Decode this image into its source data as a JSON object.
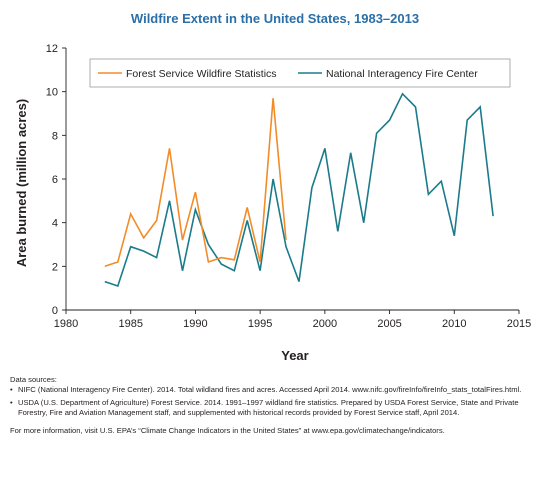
{
  "chart_data": {
    "type": "line",
    "title": "Wildfire Extent in the United States, 1983–2013",
    "xlabel": "Year",
    "ylabel": "Area burned (million acres)",
    "xlim": [
      1980,
      2015
    ],
    "ylim": [
      0,
      12
    ],
    "xticks": [
      1980,
      1985,
      1990,
      1995,
      2000,
      2005,
      2010,
      2015
    ],
    "yticks": [
      0,
      2,
      4,
      6,
      8,
      10,
      12
    ],
    "grid": false,
    "legend_position": "top",
    "series": [
      {
        "name": "Forest Service Wildfire Statistics",
        "color": "#f28c28",
        "x": [
          1983,
          1984,
          1985,
          1986,
          1987,
          1988,
          1989,
          1990,
          1991,
          1992,
          1993,
          1994,
          1995,
          1996,
          1997
        ],
        "y": [
          2.0,
          2.2,
          4.4,
          3.3,
          4.1,
          7.4,
          3.2,
          5.4,
          2.2,
          2.4,
          2.3,
          4.7,
          2.2,
          9.7,
          3.2
        ]
      },
      {
        "name": "National Interagency Fire Center",
        "color": "#1b7b8a",
        "x": [
          1983,
          1984,
          1985,
          1986,
          1987,
          1988,
          1989,
          1990,
          1991,
          1992,
          1993,
          1994,
          1995,
          1996,
          1997,
          1998,
          1999,
          2000,
          2001,
          2002,
          2003,
          2004,
          2005,
          2006,
          2007,
          2008,
          2009,
          2010,
          2011,
          2012,
          2013
        ],
        "y": [
          1.3,
          1.1,
          2.9,
          2.7,
          2.4,
          5.0,
          1.8,
          4.6,
          3.0,
          2.1,
          1.8,
          4.1,
          1.8,
          6.0,
          2.9,
          1.3,
          5.6,
          7.4,
          3.6,
          7.2,
          4.0,
          8.1,
          8.7,
          9.9,
          9.3,
          5.3,
          5.9,
          3.4,
          8.7,
          9.3,
          4.3
        ]
      }
    ]
  },
  "sources": {
    "heading": "Data sources:",
    "items": [
      "NIFC (National Interagency Fire Center). 2014. Total wildland fires and acres. Accessed April 2014. www.nifc.gov/fireInfo/fireInfo_stats_totalFires.html.",
      "USDA (U.S. Department of Agriculture) Forest Service. 2014. 1991–1997 wildland fire statistics. Prepared by USDA Forest Service, State and Private Forestry, Fire and Aviation Management staff, and supplemented with historical records provided by Forest Service staff, April 2014."
    ],
    "more_info": "For more information, visit U.S. EPA’s “Climate Change Indicators in the United States” at www.epa.gov/climatechange/indicators."
  }
}
